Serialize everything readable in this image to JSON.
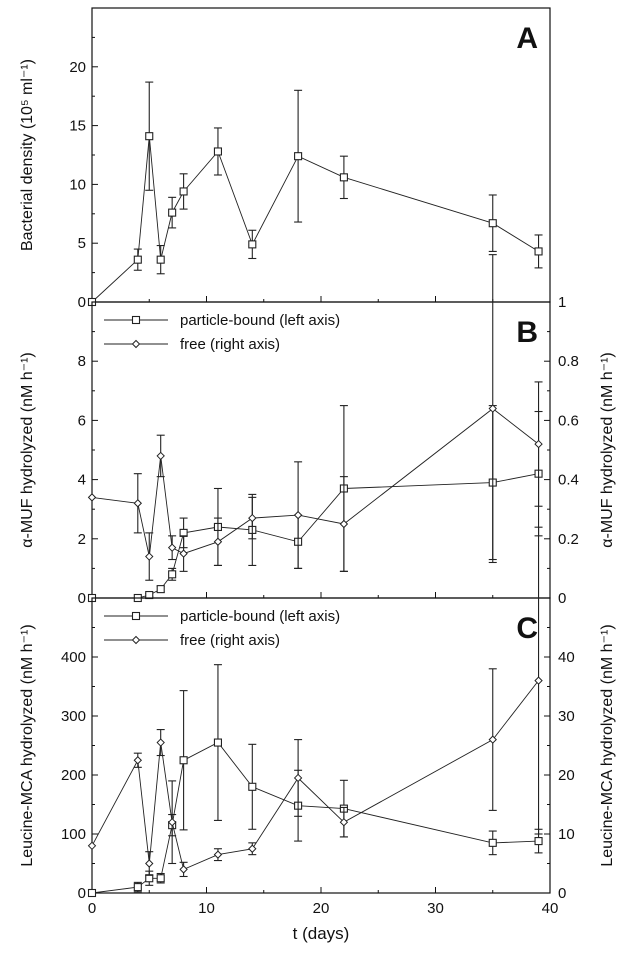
{
  "chart_data": [
    {
      "panel_letter": "A",
      "type": "line",
      "ylabel": "Bacterial density (10⁵ ml⁻¹)",
      "ylim": [
        0,
        25
      ],
      "yticks": [
        0,
        5,
        10,
        15,
        20
      ],
      "xlim": [
        0,
        40
      ],
      "legend_position": "none",
      "series": [
        {
          "axis": "left",
          "marker": "square-open",
          "x": [
            0,
            4,
            5,
            6,
            7,
            8,
            11,
            14,
            18,
            22,
            35,
            39
          ],
          "y": [
            0,
            3.6,
            14.1,
            3.6,
            7.6,
            9.4,
            12.8,
            4.9,
            12.4,
            10.6,
            6.7,
            4.3
          ],
          "err": [
            0,
            0.9,
            4.6,
            1.2,
            1.3,
            1.5,
            2.0,
            1.2,
            5.6,
            1.8,
            2.4,
            1.4
          ]
        }
      ]
    },
    {
      "panel_letter": "B",
      "type": "line",
      "ylabel": "α-MUF hydrolyzed (nM h⁻¹)",
      "ylabel_right": "α-MUF hydrolyzed (nM h⁻¹)",
      "ylim": [
        0,
        10
      ],
      "yticks": [
        0,
        2,
        4,
        6,
        8
      ],
      "ylim_right": [
        0,
        1.0
      ],
      "yticks_right": [
        0,
        0.2,
        0.4,
        0.6,
        0.8,
        1.0
      ],
      "xlim": [
        0,
        40
      ],
      "legend_position": "top-left",
      "series": [
        {
          "name": "particle-bound (left axis)",
          "axis": "left",
          "marker": "square-open",
          "x": [
            0,
            4,
            5,
            6,
            7,
            8,
            11,
            14,
            18,
            22,
            35,
            39
          ],
          "y": [
            0,
            0,
            0.1,
            0.3,
            0.8,
            2.2,
            2.4,
            2.3,
            1.9,
            3.7,
            3.9,
            4.2
          ],
          "err": [
            0,
            0,
            0.05,
            0.1,
            0.2,
            0.5,
            1.3,
            1.2,
            0.9,
            2.8,
            2.6,
            2.1
          ]
        },
        {
          "name": "free (right axis)",
          "axis": "right",
          "marker": "diamond-open",
          "x": [
            0,
            4,
            5,
            6,
            7,
            8,
            11,
            14,
            18,
            22,
            35,
            39
          ],
          "y": [
            0.34,
            0.32,
            0.14,
            0.48,
            0.17,
            0.15,
            0.19,
            0.27,
            0.28,
            0.25,
            0.64,
            0.52
          ],
          "err": [
            0,
            0.1,
            0.08,
            0.07,
            0.04,
            0.06,
            0.08,
            0.07,
            0.18,
            0.16,
            0.52,
            0.21
          ]
        }
      ]
    },
    {
      "panel_letter": "C",
      "type": "line",
      "xlabel": "t (days)",
      "ylabel": "Leucine-MCA hydrolyzed (nM h⁻¹)",
      "ylabel_right": "Leucine-MCA hydrolyzed (nM h⁻¹)",
      "ylim": [
        0,
        500
      ],
      "yticks": [
        0,
        100,
        200,
        300,
        400
      ],
      "ylim_right": [
        0,
        50
      ],
      "yticks_right": [
        0,
        10,
        20,
        30,
        40
      ],
      "xlim": [
        0,
        40
      ],
      "xticks": [
        0,
        10,
        20,
        30,
        40
      ],
      "legend_position": "top-left",
      "series": [
        {
          "name": "particle-bound (left axis)",
          "axis": "left",
          "marker": "square-open",
          "x": [
            0,
            4,
            5,
            6,
            7,
            8,
            11,
            14,
            18,
            22,
            35,
            39
          ],
          "y": [
            0,
            10,
            25,
            25,
            115,
            225,
            255,
            180,
            148,
            143,
            85,
            88
          ],
          "err": [
            0,
            8,
            12,
            8,
            18,
            118,
            132,
            72,
            60,
            48,
            20,
            20
          ]
        },
        {
          "name": "free (right axis)",
          "axis": "right",
          "marker": "diamond-open",
          "x": [
            0,
            4,
            5,
            6,
            7,
            8,
            11,
            14,
            18,
            22,
            35,
            39
          ],
          "y": [
            8,
            22.5,
            5,
            25.5,
            12,
            4,
            6.5,
            7.5,
            19.5,
            12,
            26,
            36
          ],
          "err": [
            0,
            1.2,
            2,
            2.2,
            7,
            1.2,
            1,
            1,
            6.5,
            2.5,
            12,
            26
          ]
        }
      ]
    }
  ]
}
